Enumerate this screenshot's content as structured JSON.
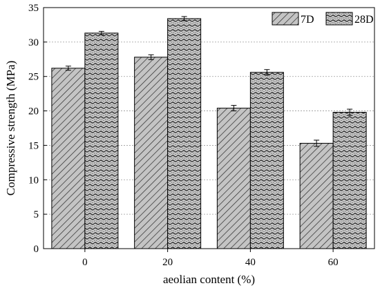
{
  "chart_data": {
    "type": "bar",
    "title": "",
    "xlabel": "aeolian content (%)",
    "ylabel": "Compressive strength (MPa)",
    "categories": [
      "0",
      "20",
      "40",
      "60"
    ],
    "ylim": [
      0,
      35
    ],
    "yticks": [
      0,
      5,
      10,
      15,
      20,
      25,
      30,
      35
    ],
    "grid": "horizontal dotted",
    "legend_position": "top-right",
    "series": [
      {
        "name": "7D",
        "values": [
          26.2,
          27.8,
          20.4,
          15.3
        ],
        "errors": [
          0.3,
          0.35,
          0.4,
          0.45
        ],
        "pattern": "diagonal-hatch",
        "color": "#c8c8c8"
      },
      {
        "name": "28D",
        "values": [
          31.3,
          33.4,
          25.6,
          19.8
        ],
        "errors": [
          0.25,
          0.3,
          0.4,
          0.45
        ],
        "pattern": "wave-dots",
        "color": "#c8c8c8"
      }
    ]
  }
}
